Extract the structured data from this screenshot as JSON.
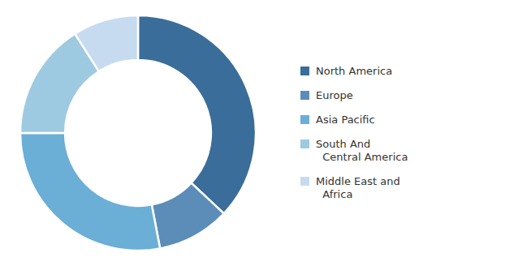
{
  "chart_data": {
    "type": "donut",
    "categories": [
      "North America",
      "Europe",
      "Asia Pacific",
      "South And\n  Central America",
      "Middle East and\n  Africa"
    ],
    "values": [
      37,
      10,
      28,
      16,
      9
    ],
    "colors": [
      "#3A6D9A",
      "#5B8DB8",
      "#6BAED6",
      "#9ECAE1",
      "#C6DBEF"
    ],
    "legend": "right"
  }
}
